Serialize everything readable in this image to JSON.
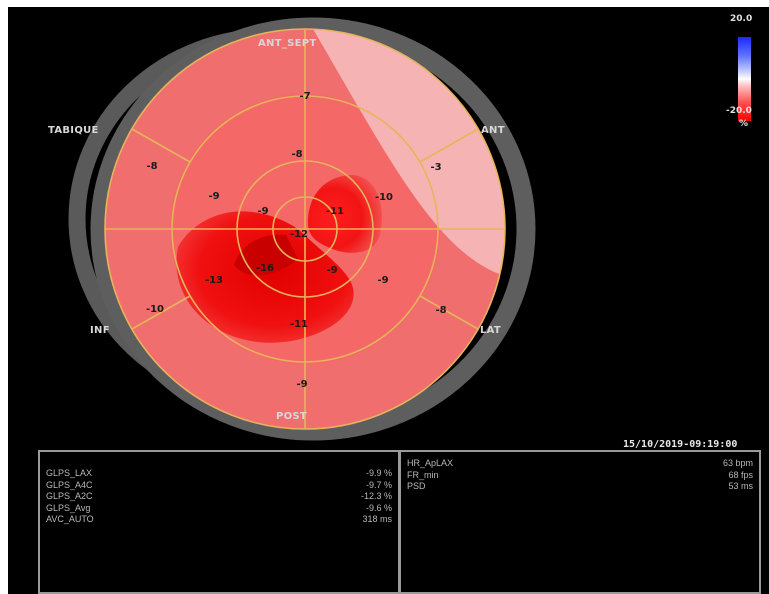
{
  "bullseye": {
    "wall_labels": {
      "anterior_septal": "ANT_SEPT",
      "septal": "TABIQUE",
      "anterior": "ANT",
      "inferior": "INF",
      "lateral": "LAT",
      "posterior": "POST"
    },
    "segments": [
      {
        "name": "basal-anterior-septal",
        "value": "-7"
      },
      {
        "name": "basal-anterior",
        "value": "-3"
      },
      {
        "name": "basal-lateral",
        "value": "-8"
      },
      {
        "name": "basal-posterior",
        "value": "-9"
      },
      {
        "name": "basal-inferior",
        "value": "-10"
      },
      {
        "name": "basal-septal",
        "value": "-8"
      },
      {
        "name": "mid-anterior-septal",
        "value": "-8"
      },
      {
        "name": "mid-anterior",
        "value": "-10"
      },
      {
        "name": "mid-lateral",
        "value": "-9"
      },
      {
        "name": "mid-posterior",
        "value": "-11"
      },
      {
        "name": "mid-inferior",
        "value": "-13"
      },
      {
        "name": "mid-septal",
        "value": "-9"
      },
      {
        "name": "apical-anterior",
        "value": "-11"
      },
      {
        "name": "apical-lateral",
        "value": "-9"
      },
      {
        "name": "apical-inferior",
        "value": "-16"
      },
      {
        "name": "apical-septal",
        "value": "-9"
      },
      {
        "name": "apex",
        "value": "-12"
      }
    ]
  },
  "colorbar": {
    "max_label": "20.0",
    "min_label": "-20.0",
    "unit": "%",
    "colors": {
      "positive": "#1a2bff",
      "zero": "#ffffff",
      "negative": "#ff0000"
    }
  },
  "timestamp": "15/10/2019-09:19:00",
  "measurements_left": [
    {
      "label": "GLPS_LAX",
      "value": "-9.9 %"
    },
    {
      "label": "GLPS_A4C",
      "value": "-9.7 %"
    },
    {
      "label": "GLPS_A2C",
      "value": "-12.3 %"
    },
    {
      "label": "GLPS_Avg",
      "value": "-9.6 %"
    },
    {
      "label": "AVC_AUTO",
      "value": "318 ms"
    }
  ],
  "measurements_right": [
    {
      "label": "HR_ApLAX",
      "value": "63 bpm"
    },
    {
      "label": "FR_min",
      "value": "68 fps"
    },
    {
      "label": "PSD",
      "value": "53 ms"
    }
  ]
}
